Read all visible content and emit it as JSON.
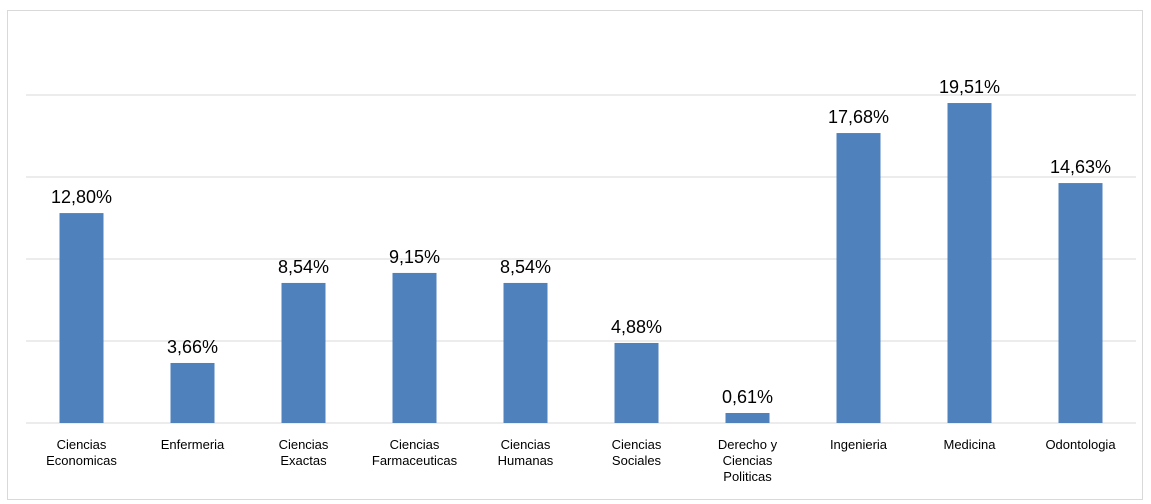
{
  "chart_data": {
    "type": "bar",
    "categories": [
      [
        "Ciencias",
        "Economicas"
      ],
      [
        "Enfermeria"
      ],
      [
        "Ciencias",
        "Exactas"
      ],
      [
        "Ciencias",
        "Farmaceuticas"
      ],
      [
        "Ciencias",
        "Humanas"
      ],
      [
        "Ciencias",
        "Sociales"
      ],
      [
        "Derecho y",
        "Ciencias",
        "Politicas"
      ],
      [
        "Ingenieria"
      ],
      [
        "Medicina"
      ],
      [
        "Odontologia"
      ]
    ],
    "values": [
      12.8,
      3.66,
      8.54,
      9.15,
      8.54,
      4.88,
      0.61,
      17.68,
      19.51,
      14.63
    ],
    "data_labels": [
      "12,80%",
      "3,66%",
      "8,54%",
      "9,15%",
      "8,54%",
      "4,88%",
      "0,61%",
      "17,68%",
      "19,51%",
      "14,63%"
    ],
    "title": "",
    "xlabel": "",
    "ylabel": "",
    "ylim": [
      0,
      25
    ],
    "y_grid_step": 5,
    "grid": true,
    "bar_color": "#4f81bd",
    "grid_color": "#d9d9d9",
    "legend": "none"
  }
}
